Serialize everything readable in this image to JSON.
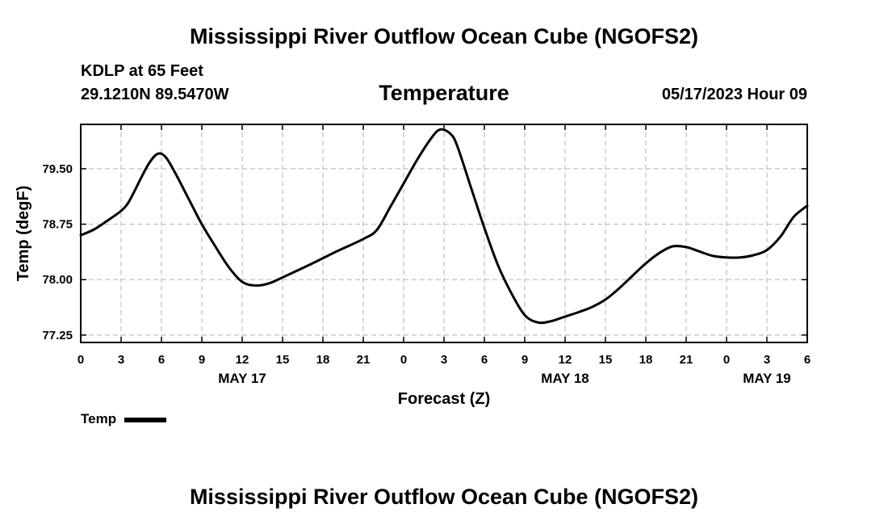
{
  "header": {
    "title": "Mississippi River Outflow Ocean Cube (NGOFS2)",
    "station": "KDLP at 65 Feet",
    "coords": "29.1210N  89.5470W",
    "variable": "Temperature",
    "timestamp": "05/17/2023 Hour 09"
  },
  "footer": {
    "title": "Mississippi River Outflow Ocean Cube (NGOFS2)"
  },
  "legend": {
    "label": "Temp"
  },
  "colors": {
    "line": "#000000",
    "grid": "#bdbdbd"
  },
  "chart_data": {
    "type": "line",
    "title": "Temperature",
    "xlabel": "Forecast (Z)",
    "ylabel": "Temp (degF)",
    "xlim": [
      0,
      54
    ],
    "ylim": [
      77.15,
      80.1
    ],
    "grid": true,
    "legend_position": "bottom-left",
    "x_ticks": [
      0,
      3,
      6,
      9,
      12,
      15,
      18,
      21,
      24,
      27,
      30,
      33,
      36,
      39,
      42,
      45,
      48,
      51,
      54
    ],
    "x_tick_labels": [
      "0",
      "3",
      "6",
      "9",
      "12",
      "15",
      "18",
      "21",
      "0",
      "3",
      "6",
      "9",
      "12",
      "15",
      "18",
      "21",
      "0",
      "3",
      "6"
    ],
    "y_ticks": [
      77.25,
      78.0,
      78.75,
      79.5
    ],
    "y_tick_labels": [
      "77.25",
      "78.00",
      "78.75",
      "79.50"
    ],
    "date_labels": [
      {
        "x": 12,
        "label": "MAY 17"
      },
      {
        "x": 36,
        "label": "MAY 18"
      },
      {
        "x": 51,
        "label": "MAY 19"
      }
    ],
    "series": [
      {
        "name": "Temp",
        "x": [
          0,
          1,
          2,
          3,
          3.5,
          4,
          5,
          5.7,
          6.3,
          7,
          8,
          9,
          10,
          11,
          12,
          13,
          14,
          15,
          17,
          19,
          21,
          22,
          23,
          24,
          25,
          26,
          26.7,
          27.5,
          28,
          29,
          30,
          31,
          32,
          33,
          34,
          35,
          36,
          37,
          38,
          39,
          40,
          41,
          42,
          43,
          44,
          45,
          46,
          47,
          48,
          49,
          50,
          51,
          52,
          53,
          54
        ],
        "values": [
          78.6,
          78.68,
          78.8,
          78.93,
          79.03,
          79.2,
          79.55,
          79.7,
          79.66,
          79.45,
          79.1,
          78.75,
          78.45,
          78.17,
          77.97,
          77.92,
          77.95,
          78.03,
          78.2,
          78.38,
          78.55,
          78.67,
          78.98,
          79.3,
          79.62,
          79.9,
          80.03,
          79.97,
          79.8,
          79.25,
          78.7,
          78.2,
          77.82,
          77.52,
          77.42,
          77.44,
          77.5,
          77.56,
          77.63,
          77.73,
          77.88,
          78.05,
          78.22,
          78.36,
          78.45,
          78.44,
          78.38,
          78.32,
          78.3,
          78.3,
          78.33,
          78.4,
          78.58,
          78.85,
          79.0
        ]
      }
    ]
  }
}
